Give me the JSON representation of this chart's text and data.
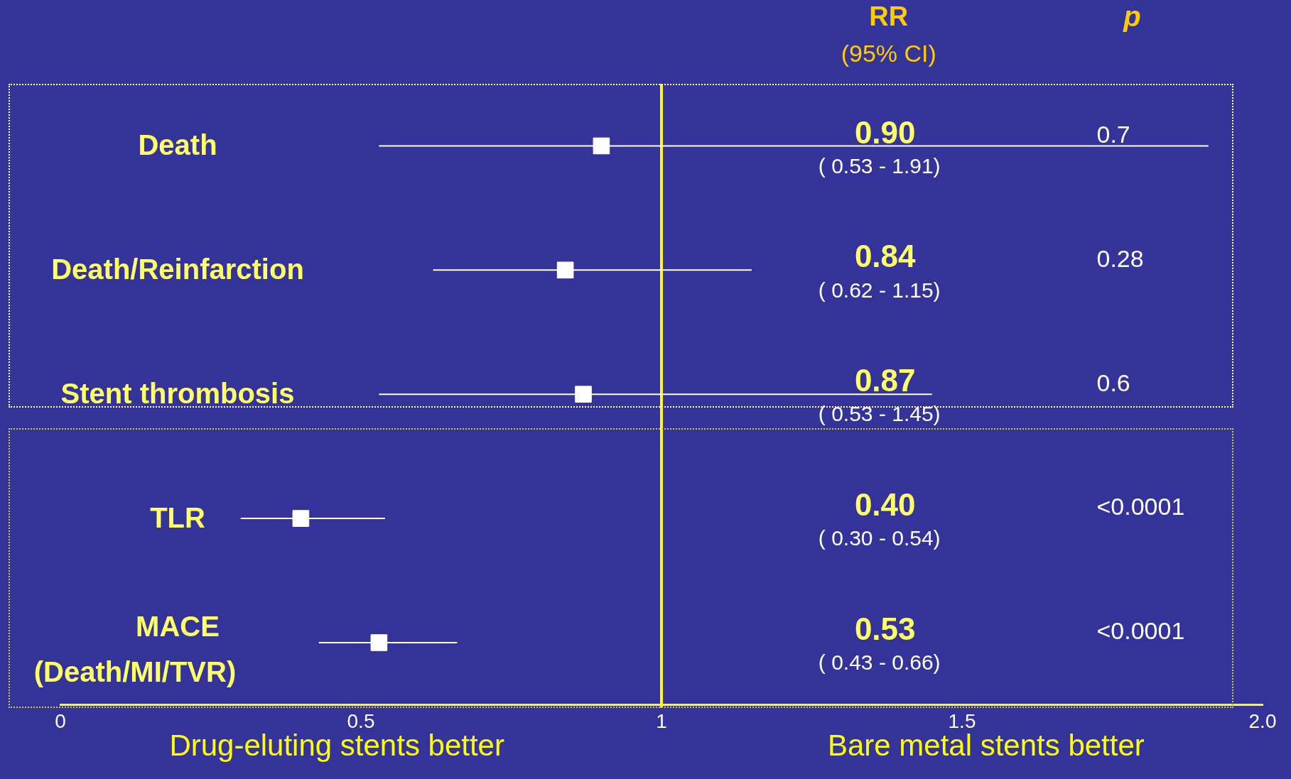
{
  "chart_data": {
    "type": "scatter",
    "orientation": "horizontal",
    "categories": [
      "Death",
      "Death/Reinfarction",
      "Stent thrombosis",
      "TLR",
      "MACE (Death/MI/TVR)"
    ],
    "values": [
      0.9,
      0.84,
      0.87,
      0.4,
      0.53
    ],
    "errors": [
      [
        0.53,
        1.91
      ],
      [
        0.62,
        1.15
      ],
      [
        0.53,
        1.45
      ],
      [
        0.3,
        0.54
      ],
      [
        0.43,
        0.66
      ]
    ],
    "color": "#ffffff",
    "marker": "square",
    "xlim": [
      0,
      2
    ],
    "xticks": [
      0,
      0.5,
      1,
      1.5,
      {
        "value": 2,
        "label": "2.0"
      }
    ],
    "ref_lines": [
      {
        "axis": "x",
        "value": 1,
        "color": "#ffff00"
      }
    ],
    "annotations": [
      "RR",
      "(95% CI)",
      "p",
      "0.90",
      "0.84",
      "0.87",
      "0.40",
      "0.53",
      "( 0.53 - 1.91)",
      "( 0.62 - 1.15)",
      "( 0.53 - 1.45)",
      "( 0.30 - 0.54)",
      "( 0.43 - 0.66)",
      "0.7",
      "0.28",
      "0.6",
      "<0.0001",
      "<0.0001",
      "Drug-eluting stents better",
      "Bare metal stents better"
    ],
    "grid": false,
    "legend": false
  }
}
